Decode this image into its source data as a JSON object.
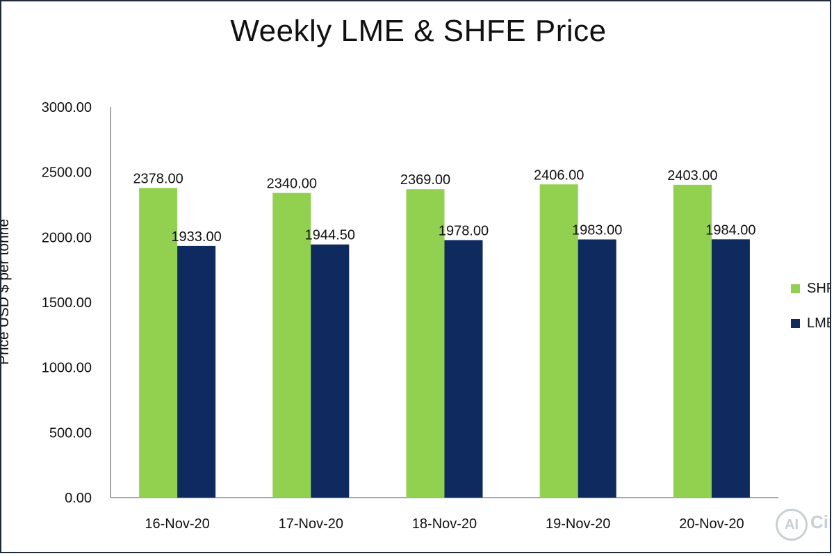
{
  "chart_data": {
    "type": "bar",
    "title": "Weekly LME & SHFE Price",
    "ylabel": "Price USD $ per tonne",
    "xlabel": "",
    "categories": [
      "16-Nov-20",
      "17-Nov-20",
      "18-Nov-20",
      "19-Nov-20",
      "20-Nov-20"
    ],
    "series": [
      {
        "name": "SHFE",
        "values": [
          2378.0,
          2340.0,
          2369.0,
          2406.0,
          2403.0
        ],
        "color": "#92d050",
        "labels": [
          "2378.00",
          "2340.00",
          "2369.00",
          "2406.00",
          "2403.00"
        ]
      },
      {
        "name": "LME",
        "values": [
          1933.0,
          1944.5,
          1978.0,
          1983.0,
          1984.0
        ],
        "color": "#0e2a5f",
        "labels": [
          "1933.00",
          "1944.50",
          "1978.00",
          "1983.00",
          "1984.00"
        ]
      }
    ],
    "ylim": [
      0,
      3000
    ],
    "yticks": [
      "0.00",
      "500.00",
      "1000.00",
      "1500.00",
      "2000.00",
      "2500.00",
      "3000.00"
    ],
    "grid": false,
    "legend_position": "right"
  },
  "watermark": {
    "badge": "AI",
    "text": "Circle"
  }
}
